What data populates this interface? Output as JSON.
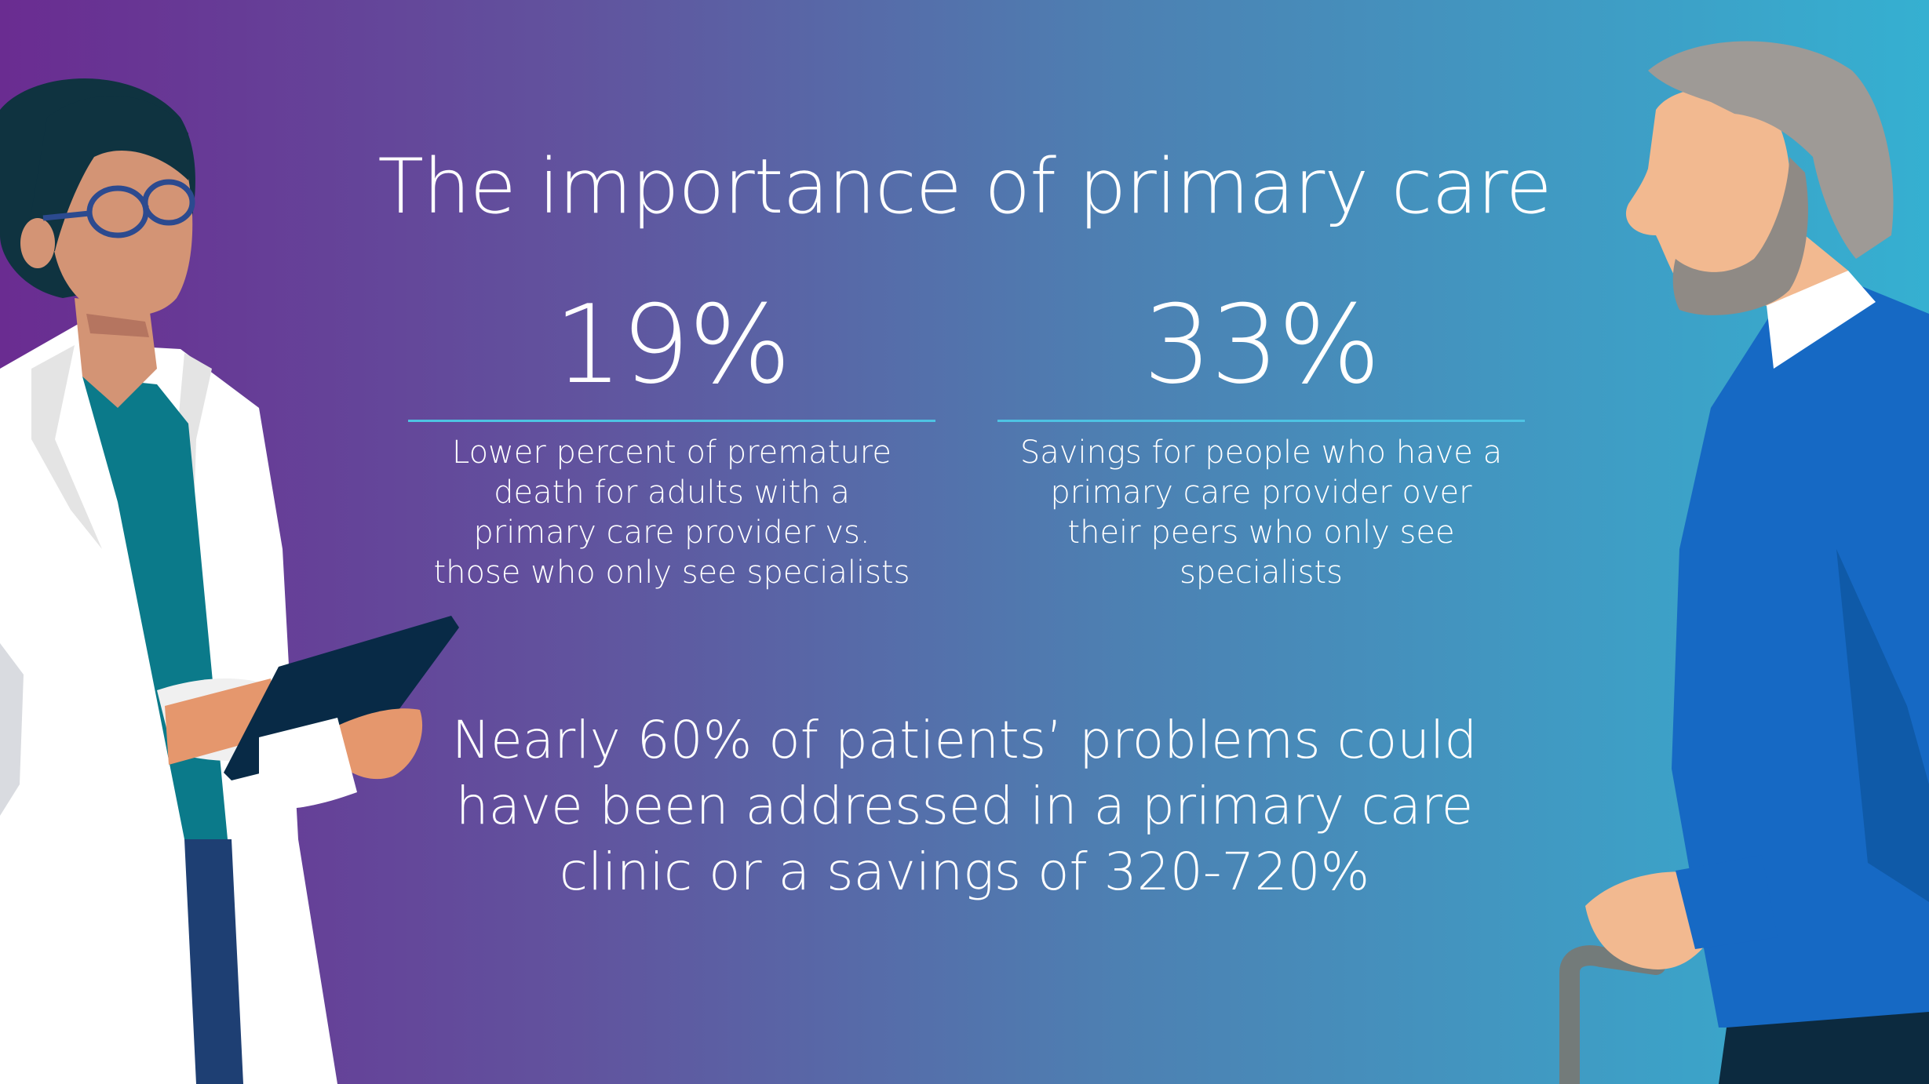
{
  "title": "The importance of primary care",
  "stats": [
    {
      "value": "19%",
      "description": "Lower percent of premature death for adults with a primary care provider vs. those who only see specialists"
    },
    {
      "value": "33%",
      "description": "Savings for people who have a primary care provider over their peers who only see specialists"
    }
  ],
  "bottom_note": "Nearly 60% of patients’ problems could have been addressed in a primary care clinic or a savings of 320-720%",
  "colors": {
    "gradient_left": "#6a2c91",
    "gradient_mid": "#4d80b2",
    "gradient_right": "#35b0d1",
    "rule_accent": "#4ec3e3",
    "text": "#ffffff"
  },
  "illustrations": [
    "doctor-with-tablet-illustration",
    "elderly-man-with-cane-illustration"
  ]
}
